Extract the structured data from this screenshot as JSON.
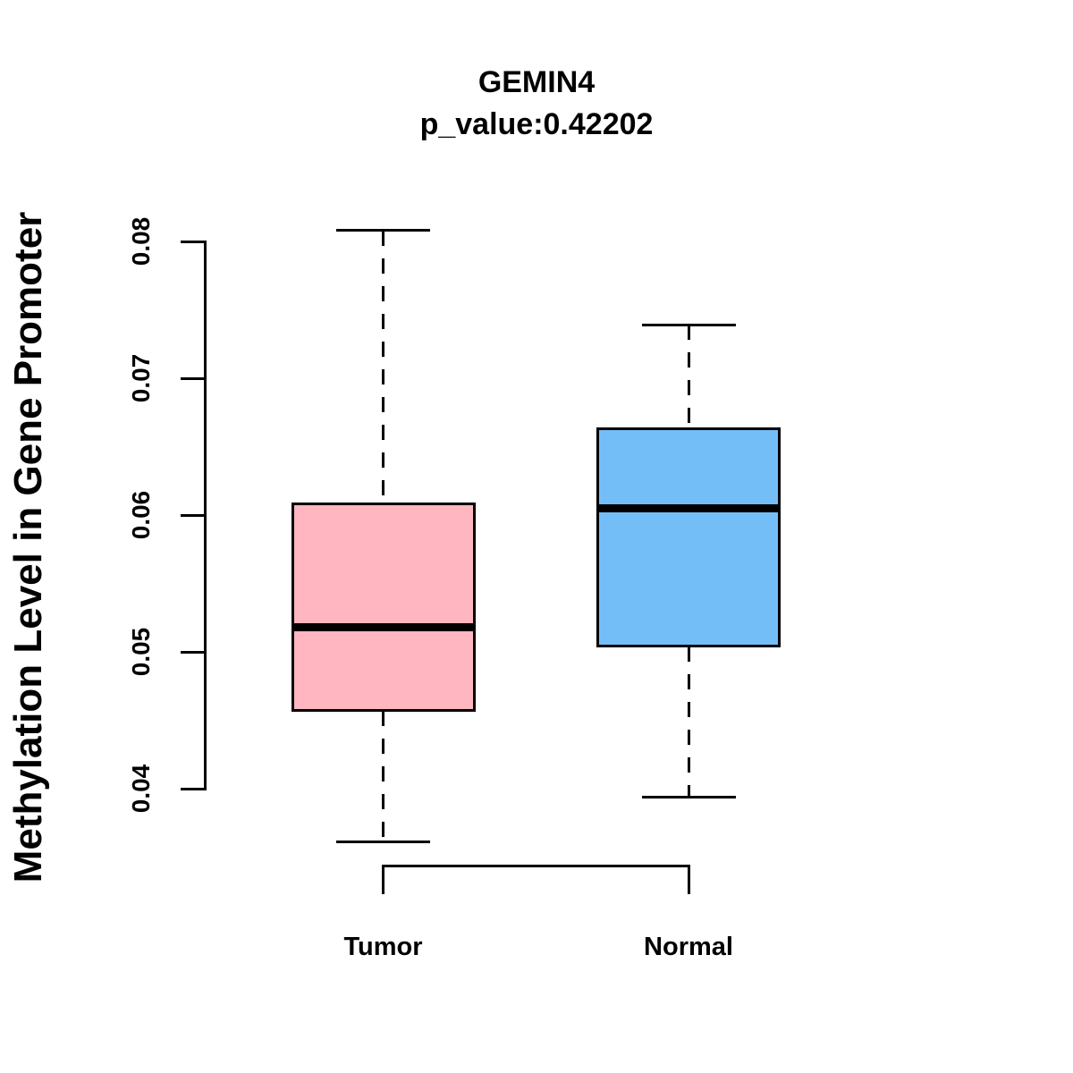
{
  "chart_data": {
    "type": "boxplot",
    "title": "GEMIN4",
    "subtitle": "p_value:0.42202",
    "ylabel": "Methylation Level in Gene Promoter",
    "xlabel": "",
    "categories": [
      "Tumor",
      "Normal"
    ],
    "series": [
      {
        "name": "Tumor",
        "whisker_low": 0.0361,
        "q1": 0.0457,
        "median": 0.0518,
        "q3": 0.0608,
        "whisker_high": 0.0808,
        "fill": "#FFB6C1"
      },
      {
        "name": "Normal",
        "whisker_low": 0.0394,
        "q1": 0.0504,
        "median": 0.0605,
        "q3": 0.0663,
        "whisker_high": 0.0739,
        "fill": "#74BEF8"
      }
    ],
    "yticks": [
      0.04,
      0.05,
      0.06,
      0.07,
      0.08
    ],
    "ylim": [
      0.04,
      0.08
    ],
    "grid": false,
    "legend": null,
    "bracket": {
      "connects": [
        "Tumor",
        "Normal"
      ]
    }
  },
  "colors": {
    "stroke": "#000000",
    "background": "#FFFFFF",
    "tumor_fill": "#FFB6C1",
    "normal_fill": "#74BEF8"
  }
}
